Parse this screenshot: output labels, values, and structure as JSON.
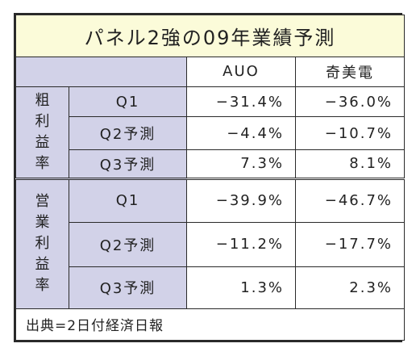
{
  "title": "パネル2強の09年業績予測",
  "columns": [
    "AUO",
    "奇美電"
  ],
  "groups": [
    {
      "label": [
        "粗",
        "利",
        "益",
        "率"
      ],
      "rows": [
        {
          "label": "Q1",
          "values": [
            "−31.4%",
            "−36.0%"
          ]
        },
        {
          "label": "Q2予測",
          "values": [
            "−4.4%",
            "−10.7%"
          ]
        },
        {
          "label": "Q3予測",
          "values": [
            "7.3%",
            "8.1%"
          ]
        }
      ]
    },
    {
      "label": [
        "営",
        "業",
        "利",
        "益",
        "率"
      ],
      "rows": [
        {
          "label": "Q1",
          "values": [
            "−39.9%",
            "−46.7%"
          ]
        },
        {
          "label": "Q2予測",
          "values": [
            "−11.2%",
            "−17.7%"
          ]
        },
        {
          "label": "Q3予測",
          "values": [
            "1.3%",
            "2.3%"
          ]
        }
      ]
    }
  ],
  "source": "出典=2日付経済日報"
}
